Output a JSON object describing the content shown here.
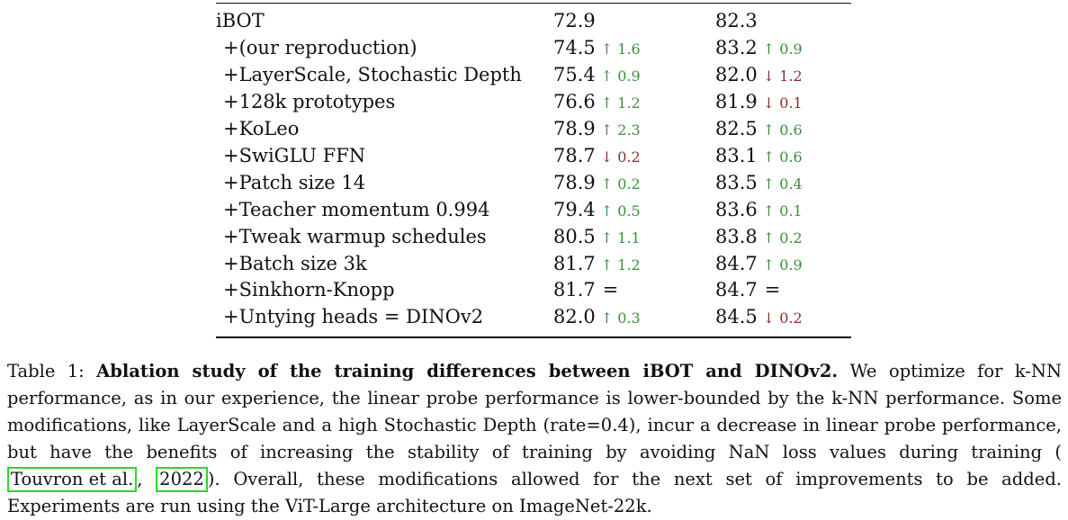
{
  "table": {
    "rows": [
      {
        "method": "iBOT",
        "knn": "72.9",
        "knn_delta": "",
        "knn_dir": "",
        "lin": "82.3",
        "lin_delta": "",
        "lin_dir": ""
      },
      {
        "method": "+(our reproduction)",
        "knn": "74.5",
        "knn_delta": "↑ 1.6",
        "knn_dir": "up",
        "lin": "83.2",
        "lin_delta": "↑ 0.9",
        "lin_dir": "up"
      },
      {
        "method": "+LayerScale, Stochastic Depth",
        "knn": "75.4",
        "knn_delta": "↑ 0.9",
        "knn_dir": "up",
        "lin": "82.0",
        "lin_delta": "↓ 1.2",
        "lin_dir": "down"
      },
      {
        "method": "+128k prototypes",
        "knn": "76.6",
        "knn_delta": "↑ 1.2",
        "knn_dir": "up",
        "lin": "81.9",
        "lin_delta": "↓ 0.1",
        "lin_dir": "down"
      },
      {
        "method": "+KoLeo",
        "knn": "78.9",
        "knn_delta": "↑ 2.3",
        "knn_dir": "up",
        "lin": "82.5",
        "lin_delta": "↑ 0.6",
        "lin_dir": "up"
      },
      {
        "method": "+SwiGLU FFN",
        "knn": "78.7",
        "knn_delta": "↓ 0.2",
        "knn_dir": "down",
        "lin": "83.1",
        "lin_delta": "↑ 0.6",
        "lin_dir": "up"
      },
      {
        "method": "+Patch size 14",
        "knn": "78.9",
        "knn_delta": "↑ 0.2",
        "knn_dir": "up",
        "lin": "83.5",
        "lin_delta": "↑ 0.4",
        "lin_dir": "up"
      },
      {
        "method": "+Teacher momentum 0.994",
        "knn": "79.4",
        "knn_delta": "↑ 0.5",
        "knn_dir": "up",
        "lin": "83.6",
        "lin_delta": "↑ 0.1",
        "lin_dir": "up"
      },
      {
        "method": "+Tweak warmup schedules",
        "knn": "80.5",
        "knn_delta": "↑ 1.1",
        "knn_dir": "up",
        "lin": "83.8",
        "lin_delta": "↑ 0.2",
        "lin_dir": "up"
      },
      {
        "method": "+Batch size 3k",
        "knn": "81.7",
        "knn_delta": "↑ 1.2",
        "knn_dir": "up",
        "lin": "84.7",
        "lin_delta": "↑ 0.9",
        "lin_dir": "up"
      },
      {
        "method": "+Sinkhorn-Knopp",
        "knn": "81.7",
        "knn_delta": "=",
        "knn_dir": "eq",
        "lin": "84.7",
        "lin_delta": "=",
        "lin_dir": "eq"
      },
      {
        "method": "+Untying heads = DINOv2",
        "knn": "82.0",
        "knn_delta": "↑ 0.3",
        "knn_dir": "up",
        "lin": "84.5",
        "lin_delta": "↓ 0.2",
        "lin_dir": "down"
      }
    ]
  },
  "caption": {
    "label": "Table 1:",
    "bold_title": "Ablation study of the training differences between iBOT and DINOv2.",
    "text_1": "We optimize for k-NN performance, as in our experience, the linear probe performance is lower-bounded by the k-NN performance. Some modifications, like LayerScale and a high Stochastic Depth (rate=0.4), incur a decrease in linear probe performance, but have the benefits of increasing the stability of training by avoiding NaN loss values during training (",
    "cite_author": "Touvron et al.",
    "cite_sep": ",",
    "cite_year": "2022",
    "text_2": "). Overall, these modifications allowed for the next set of improvements to be added. Experiments are run using the ViT-Large architecture on ImageNet-22k."
  },
  "colors": {
    "up": "#3b8f3b",
    "down": "#8b2d2d",
    "citation_box": "#22dd22"
  }
}
